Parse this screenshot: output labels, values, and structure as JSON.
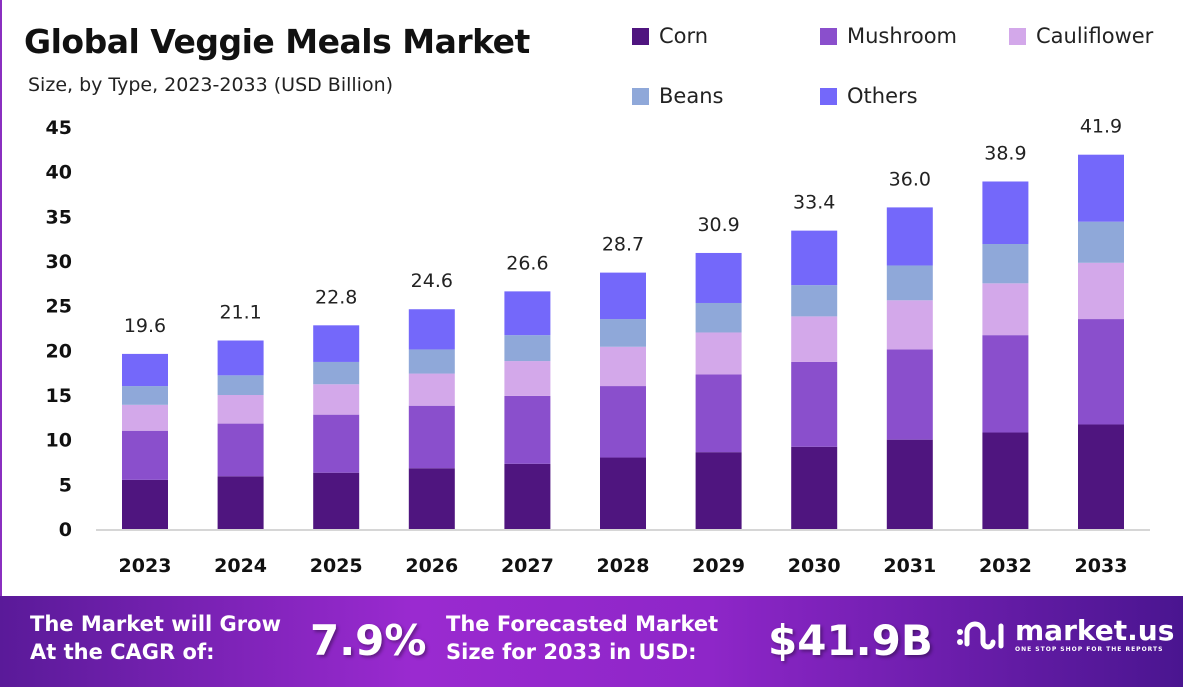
{
  "header": {
    "title": "Global Veggie Meals Market",
    "subtitle": "Size, by Type, 2023-2033 (USD Billion)"
  },
  "colors": {
    "Corn": "#4f157f",
    "Mushroom": "#8a4fcc",
    "Cauliflower": "#d3a8ea",
    "Beans": "#8fa8d9",
    "Others": "#7468fa",
    "footer": "#9a2ad0"
  },
  "chart_data": {
    "type": "bar",
    "stacked": true,
    "title": "Global Veggie Meals Market",
    "subtitle": "Size, by Type, 2023-2033 (USD Billion)",
    "xlabel": "",
    "ylabel": "",
    "ylim": [
      0,
      45
    ],
    "yticks": [
      0,
      5,
      10,
      15,
      20,
      25,
      30,
      35,
      40,
      45
    ],
    "grid": false,
    "legend_position": "top-right",
    "categories": [
      "2023",
      "2024",
      "2025",
      "2026",
      "2027",
      "2028",
      "2029",
      "2030",
      "2031",
      "2032",
      "2033"
    ],
    "totals": [
      "19.6",
      "21.1",
      "22.8",
      "24.6",
      "26.6",
      "28.7",
      "30.9",
      "33.4",
      "36.0",
      "38.9",
      "41.9"
    ],
    "series": [
      {
        "name": "Corn",
        "values": [
          5.5,
          5.9,
          6.3,
          6.8,
          7.3,
          8.0,
          8.6,
          9.2,
          10.0,
          10.8,
          11.7
        ]
      },
      {
        "name": "Mushroom",
        "values": [
          5.5,
          5.9,
          6.5,
          7.0,
          7.6,
          8.0,
          8.7,
          9.5,
          10.1,
          10.9,
          11.8
        ]
      },
      {
        "name": "Cauliflower",
        "values": [
          2.9,
          3.2,
          3.4,
          3.6,
          3.9,
          4.4,
          4.7,
          5.1,
          5.5,
          5.8,
          6.3
        ]
      },
      {
        "name": "Beans",
        "values": [
          2.1,
          2.2,
          2.5,
          2.7,
          2.9,
          3.1,
          3.3,
          3.5,
          3.9,
          4.4,
          4.6
        ]
      },
      {
        "name": "Others",
        "values": [
          3.6,
          3.9,
          4.1,
          4.5,
          4.9,
          5.2,
          5.6,
          6.1,
          6.5,
          7.0,
          7.5
        ]
      }
    ]
  },
  "footer": {
    "cagr_label_1": "The Market will Grow",
    "cagr_label_2": "At the CAGR of:",
    "cagr_value": "7.9%",
    "forecast_label_1": "The Forecasted Market",
    "forecast_label_2": "Size for 2033 in USD:",
    "forecast_value": "$41.9B",
    "logo_name": "market.us",
    "logo_tagline": "ONE STOP SHOP FOR THE REPORTS"
  }
}
